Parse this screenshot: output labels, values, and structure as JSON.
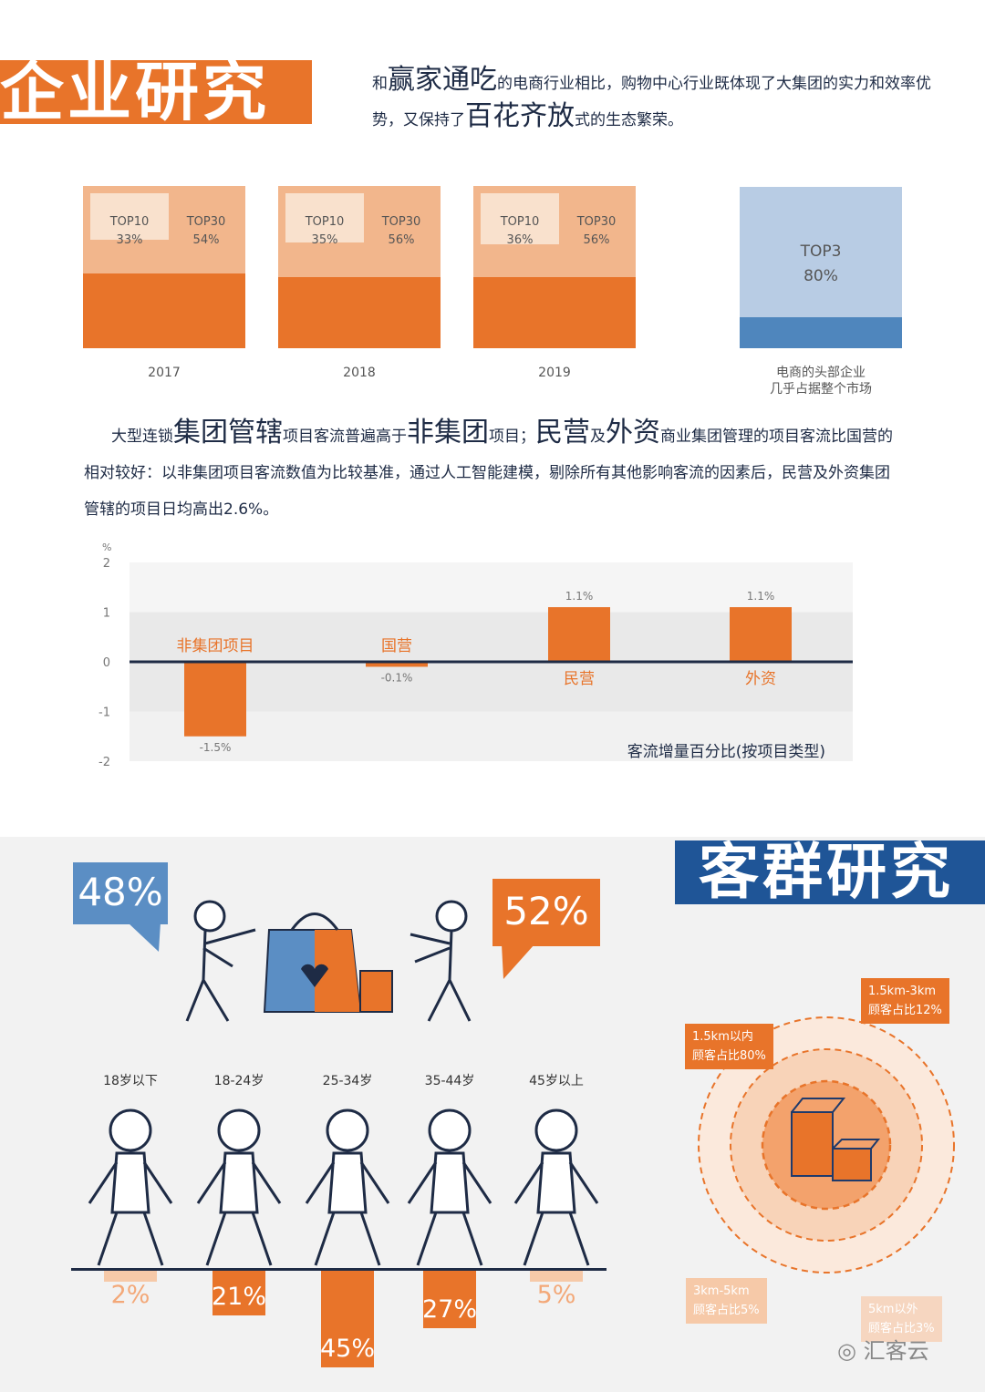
{
  "section1": {
    "title": "企业研究",
    "intro": {
      "p1": "和",
      "e1": "赢家通吃",
      "p2": "的电商行业相比，购物中心行业既体现了大集团的实力和效率优势，又保持了",
      "e2": "百花齐放",
      "p3": "式的生态繁荣。"
    },
    "squares": [
      {
        "year": "2017",
        "top10_label": "TOP10",
        "top10": "33%",
        "top30_label": "TOP30",
        "top30": "54%",
        "top10_value": 33,
        "top30_value": 54
      },
      {
        "year": "2018",
        "top10_label": "TOP10",
        "top10": "35%",
        "top30_label": "TOP30",
        "top30": "56%",
        "top10_value": 35,
        "top30_value": 56
      },
      {
        "year": "2019",
        "top10_label": "TOP10",
        "top10": "36%",
        "top30_label": "TOP30",
        "top30": "56%",
        "top10_value": 36,
        "top30_value": 56
      }
    ],
    "ecom": {
      "label": "TOP3",
      "value": "80%",
      "caption1": "电商的头部企业",
      "caption2": "几乎占据整个市场",
      "fraction": 0.8
    },
    "paragraph": {
      "p1": "大型连锁",
      "e1": "集团管辖",
      "p2": "项目客流普遍高于",
      "e2": "非集团",
      "p3": "项目；",
      "e3": "民营",
      "p4": "及",
      "e4": "外资",
      "p5": "商业集团管理的项目客流比国营的相对较好：以非集团项目客流数值为比较基准，通过人工智能建模，剔除所有其他影响客流的因素后，民营及外资集团管辖的项目日均高出2.6%。"
    }
  },
  "chart_data": {
    "type": "bar",
    "unit": "%",
    "title": "客流增量百分比(按项目类型)",
    "categories": [
      "非集团项目",
      "国营",
      "民营",
      "外资"
    ],
    "values": [
      -1.5,
      -0.1,
      1.1,
      1.1
    ],
    "value_labels": [
      "-1.5%",
      "-0.1%",
      "1.1%",
      "1.1%"
    ],
    "yticks": [
      "2",
      "1",
      "0",
      "-1",
      "-2"
    ],
    "ylim": [
      -2,
      2
    ],
    "color": "#e8742a"
  },
  "section2": {
    "title": "客群研究",
    "gender": {
      "female": "48%",
      "male": "52%",
      "female_color": "#5b8ec4",
      "male_color": "#e8742a"
    },
    "ages": [
      {
        "label": "18岁以下",
        "pct": "2%",
        "value": 2
      },
      {
        "label": "18-24岁",
        "pct": "21%",
        "value": 21
      },
      {
        "label": "25-34岁",
        "pct": "45%",
        "value": 45
      },
      {
        "label": "35-44岁",
        "pct": "27%",
        "value": 27
      },
      {
        "label": "45岁以上",
        "pct": "5%",
        "value": 5
      }
    ],
    "rings": [
      {
        "l1": "1.5km以内",
        "l2": "顾客占比80%"
      },
      {
        "l1": "1.5km-3km",
        "l2": "顾客占比12%"
      },
      {
        "l1": "3km-5km",
        "l2": "顾客占比5%"
      },
      {
        "l1": "5km以外",
        "l2": "顾客占比3%"
      }
    ],
    "logo": "汇客云"
  }
}
